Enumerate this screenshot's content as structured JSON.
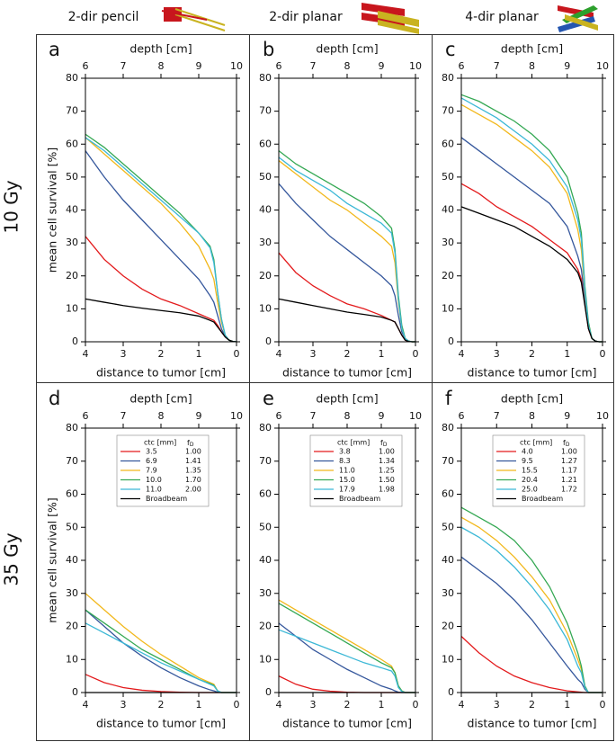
{
  "header": {
    "columns": [
      "2-dir pencil",
      "2-dir planar",
      "4-dir planar"
    ]
  },
  "row_labels": [
    "10 Gy",
    "35 Gy"
  ],
  "chart_data": [
    {
      "type": "line",
      "panel": "a",
      "xlabel": "distance to tumor [cm]",
      "x2label": "depth [cm]",
      "ylabel": "mean cell survival [%]",
      "xlim": [
        4,
        0
      ],
      "xticks": [
        4,
        3,
        2,
        1,
        0
      ],
      "x2lim": [
        6,
        10
      ],
      "x2ticks": [
        6,
        7,
        8,
        9,
        10
      ],
      "ylim": [
        0,
        80
      ],
      "yticks": [
        0,
        10,
        20,
        30,
        40,
        50,
        60,
        70,
        80
      ],
      "x": [
        4,
        3.5,
        3,
        2.5,
        2,
        1.5,
        1,
        0.7,
        0.6,
        0.5,
        0.4,
        0.3,
        0.2,
        0.1,
        0
      ],
      "series": [
        {
          "color": "#e31a1c",
          "values": [
            32,
            25,
            20,
            16,
            13,
            11,
            8.5,
            7,
            6.5,
            5,
            3,
            1.5,
            0.5,
            0.1,
            0
          ]
        },
        {
          "color": "#35579c",
          "values": [
            58,
            50,
            43,
            37,
            31,
            25,
            19,
            14,
            12,
            8,
            4,
            1.5,
            0.5,
            0.1,
            0
          ]
        },
        {
          "color": "#f2b81c",
          "values": [
            62,
            57,
            52,
            47,
            42,
            36,
            29,
            22,
            19,
            12,
            6,
            2,
            0.5,
            0.1,
            0
          ]
        },
        {
          "color": "#34a853",
          "values": [
            63,
            59,
            54,
            49,
            44,
            39,
            33,
            29,
            25,
            15,
            7,
            2,
            0.5,
            0.1,
            0
          ]
        },
        {
          "color": "#3cb8d6",
          "values": [
            62,
            58,
            53,
            48,
            43,
            38,
            33,
            28.5,
            24,
            15,
            7,
            2,
            0.5,
            0.1,
            0
          ]
        },
        {
          "color": "#000000",
          "values": [
            13,
            12,
            11,
            10.2,
            9.5,
            8.8,
            7.8,
            6.5,
            6,
            4.5,
            3,
            1.5,
            0.5,
            0.1,
            0
          ]
        }
      ]
    },
    {
      "type": "line",
      "panel": "b",
      "xlabel": "distance to tumor [cm]",
      "x2label": "depth [cm]",
      "xlim": [
        4,
        0
      ],
      "xticks": [
        4,
        3,
        2,
        1,
        0
      ],
      "x2lim": [
        6,
        10
      ],
      "x2ticks": [
        6,
        7,
        8,
        9,
        10
      ],
      "ylim": [
        0,
        80
      ],
      "yticks": [
        0,
        10,
        20,
        30,
        40,
        50,
        60,
        70,
        80
      ],
      "x": [
        4,
        3.5,
        3,
        2.5,
        2,
        1.5,
        1,
        0.7,
        0.6,
        0.5,
        0.4,
        0.3,
        0.2,
        0.1,
        0
      ],
      "series": [
        {
          "color": "#e31a1c",
          "values": [
            27,
            21,
            17,
            14,
            11.5,
            10,
            8,
            6.5,
            6,
            4,
            2,
            0.5,
            0.1,
            0,
            0
          ]
        },
        {
          "color": "#35579c",
          "values": [
            48,
            42,
            37,
            32,
            28,
            24,
            20,
            17,
            14,
            8,
            3,
            1,
            0.2,
            0,
            0
          ]
        },
        {
          "color": "#f2b81c",
          "values": [
            55,
            51,
            47,
            43,
            40,
            36,
            32,
            29,
            24,
            12,
            4,
            1,
            0.2,
            0,
            0
          ]
        },
        {
          "color": "#34a853",
          "values": [
            58,
            54,
            51,
            48,
            45,
            42,
            38,
            34.5,
            28,
            14,
            5,
            1,
            0.2,
            0,
            0
          ]
        },
        {
          "color": "#3cb8d6",
          "values": [
            56,
            52,
            49,
            46,
            42,
            39,
            36,
            33,
            27,
            13,
            4,
            1,
            0.2,
            0,
            0
          ]
        },
        {
          "color": "#000000",
          "values": [
            13,
            12,
            11,
            10,
            9,
            8.3,
            7.5,
            6.5,
            6,
            4,
            2,
            0.5,
            0.1,
            0,
            0
          ]
        }
      ]
    },
    {
      "type": "line",
      "panel": "c",
      "xlabel": "distance to tumor [cm]",
      "x2label": "depth [cm]",
      "xlim": [
        4,
        0
      ],
      "xticks": [
        4,
        3,
        2,
        1,
        0
      ],
      "x2lim": [
        6,
        10
      ],
      "x2ticks": [
        6,
        7,
        8,
        9,
        10
      ],
      "ylim": [
        0,
        80
      ],
      "yticks": [
        0,
        10,
        20,
        30,
        40,
        50,
        60,
        70,
        80
      ],
      "x": [
        4,
        3.5,
        3,
        2.5,
        2,
        1.5,
        1,
        0.7,
        0.6,
        0.5,
        0.4,
        0.3,
        0.2,
        0.1,
        0
      ],
      "series": [
        {
          "color": "#e31a1c",
          "values": [
            48,
            45,
            41,
            38,
            35,
            31,
            27,
            22,
            19,
            12,
            4,
            1,
            0.2,
            0,
            0
          ]
        },
        {
          "color": "#35579c",
          "values": [
            62,
            58,
            54,
            50,
            46,
            42,
            35,
            26,
            22,
            13,
            5,
            1,
            0.2,
            0,
            0
          ]
        },
        {
          "color": "#f2b81c",
          "values": [
            72,
            69,
            66,
            62,
            58,
            53,
            45,
            34,
            28,
            15,
            5,
            1,
            0.2,
            0,
            0
          ]
        },
        {
          "color": "#34a853",
          "values": [
            75,
            73,
            70,
            67,
            63,
            58,
            50,
            39,
            33,
            17,
            6,
            1,
            0.2,
            0,
            0
          ]
        },
        {
          "color": "#3cb8d6",
          "values": [
            74,
            71,
            68,
            64,
            60,
            55,
            47,
            37,
            31,
            16,
            5,
            1,
            0.2,
            0,
            0
          ]
        },
        {
          "color": "#000000",
          "values": [
            41,
            39,
            37,
            35,
            32,
            29,
            25,
            21,
            18,
            11,
            4,
            1,
            0.2,
            0,
            0
          ]
        }
      ]
    },
    {
      "type": "line",
      "panel": "d",
      "xlabel": "distance to tumor [cm]",
      "x2label": "depth [cm]",
      "ylabel": "mean cell survival [%]",
      "legend_header": {
        "ctc": "ctc [mm]",
        "fd": "f",
        "fd_sub": "D"
      },
      "xlim": [
        4,
        0
      ],
      "xticks": [
        4,
        3,
        2,
        1,
        0
      ],
      "x2lim": [
        6,
        10
      ],
      "x2ticks": [
        6,
        7,
        8,
        9,
        10
      ],
      "ylim": [
        0,
        80
      ],
      "yticks": [
        0,
        10,
        20,
        30,
        40,
        50,
        60,
        70,
        80
      ],
      "x": [
        4,
        3.5,
        3,
        2.5,
        2,
        1.5,
        1,
        0.7,
        0.6,
        0.5,
        0.4,
        0.3,
        0.2,
        0.1,
        0
      ],
      "series": [
        {
          "name": "3.5",
          "fd": "1.00",
          "color": "#e31a1c",
          "values": [
            5.5,
            3,
            1.5,
            0.7,
            0.3,
            0.1,
            0,
            0,
            0,
            0,
            0,
            0,
            0,
            0,
            0
          ]
        },
        {
          "name": "6.9",
          "fd": "1.41",
          "color": "#35579c",
          "values": [
            25,
            20,
            15,
            11,
            7.5,
            4.5,
            2,
            0.8,
            0.5,
            0.1,
            0,
            0,
            0,
            0,
            0
          ]
        },
        {
          "name": "7.9",
          "fd": "1.35",
          "color": "#f2b81c",
          "values": [
            30,
            25,
            20,
            15.5,
            11.5,
            8,
            4.5,
            3,
            2.5,
            0.5,
            0,
            0,
            0,
            0,
            0
          ]
        },
        {
          "name": "10.0",
          "fd": "1.70",
          "color": "#34a853",
          "values": [
            25,
            21,
            17,
            13,
            10,
            7,
            4,
            2.7,
            2.2,
            0.5,
            0,
            0,
            0,
            0,
            0
          ]
        },
        {
          "name": "11.0",
          "fd": "2.00",
          "color": "#3cb8d6",
          "values": [
            21,
            18,
            15,
            12,
            9,
            6.5,
            4,
            2.5,
            2,
            0.5,
            0,
            0,
            0,
            0,
            0
          ]
        },
        {
          "name": "Broadbeam",
          "color": "#000000",
          "values": [
            0,
            0,
            0,
            0,
            0,
            0,
            0,
            0,
            0,
            0,
            0,
            0,
            0,
            0,
            0
          ]
        }
      ]
    },
    {
      "type": "line",
      "panel": "e",
      "xlabel": "distance to tumor [cm]",
      "x2label": "depth [cm]",
      "legend_header": {
        "ctc": "ctc [mm]",
        "fd": "f",
        "fd_sub": "D"
      },
      "xlim": [
        4,
        0
      ],
      "xticks": [
        4,
        3,
        2,
        1,
        0
      ],
      "x2lim": [
        6,
        10
      ],
      "x2ticks": [
        6,
        7,
        8,
        9,
        10
      ],
      "ylim": [
        0,
        80
      ],
      "yticks": [
        0,
        10,
        20,
        30,
        40,
        50,
        60,
        70,
        80
      ],
      "x": [
        4,
        3.5,
        3,
        2.5,
        2,
        1.5,
        1,
        0.7,
        0.6,
        0.5,
        0.4,
        0.3,
        0.2,
        0.1,
        0
      ],
      "series": [
        {
          "name": "3.8",
          "fd": "1.00",
          "color": "#e31a1c",
          "values": [
            5,
            2.5,
            1,
            0.4,
            0.1,
            0,
            0,
            0,
            0,
            0,
            0,
            0,
            0,
            0,
            0
          ]
        },
        {
          "name": "8.3",
          "fd": "1.34",
          "color": "#35579c",
          "values": [
            21,
            17,
            13,
            10,
            7,
            4.5,
            2,
            1,
            0.5,
            0.1,
            0,
            0,
            0,
            0,
            0
          ]
        },
        {
          "name": "11.0",
          "fd": "1.25",
          "color": "#f2b81c",
          "values": [
            28,
            25,
            22,
            19,
            16,
            13,
            10,
            8,
            6,
            2,
            0.5,
            0,
            0,
            0,
            0
          ]
        },
        {
          "name": "15.0",
          "fd": "1.50",
          "color": "#34a853",
          "values": [
            27,
            24,
            21,
            18,
            15,
            12,
            9,
            7.5,
            6,
            2,
            0.5,
            0,
            0,
            0,
            0
          ]
        },
        {
          "name": "17.9",
          "fd": "1.98",
          "color": "#3cb8d6",
          "values": [
            19,
            17,
            15,
            13,
            11,
            9,
            7.5,
            6.5,
            5,
            1.5,
            0.3,
            0,
            0,
            0,
            0
          ]
        },
        {
          "name": "Broadbeam",
          "color": "#000000",
          "values": [
            0,
            0,
            0,
            0,
            0,
            0,
            0,
            0,
            0,
            0,
            0,
            0,
            0,
            0,
            0
          ]
        }
      ]
    },
    {
      "type": "line",
      "panel": "f",
      "xlabel": "distance to tumor [cm]",
      "x2label": "depth [cm]",
      "legend_header": {
        "ctc": "ctc [mm]",
        "fd": "f",
        "fd_sub": "D"
      },
      "xlim": [
        4,
        0
      ],
      "xticks": [
        4,
        3,
        2,
        1,
        0
      ],
      "x2lim": [
        6,
        10
      ],
      "x2ticks": [
        6,
        7,
        8,
        9,
        10
      ],
      "ylim": [
        0,
        80
      ],
      "yticks": [
        0,
        10,
        20,
        30,
        40,
        50,
        60,
        70,
        80
      ],
      "x": [
        4,
        3.5,
        3,
        2.5,
        2,
        1.5,
        1,
        0.7,
        0.6,
        0.5,
        0.4,
        0.3,
        0.2,
        0.1,
        0
      ],
      "series": [
        {
          "name": "4.0",
          "fd": "1.00",
          "color": "#e31a1c",
          "values": [
            17,
            12,
            8,
            5,
            3,
            1.5,
            0.5,
            0.2,
            0.1,
            0,
            0,
            0,
            0,
            0,
            0
          ]
        },
        {
          "name": "9.5",
          "fd": "1.27",
          "color": "#35579c",
          "values": [
            41,
            37,
            33,
            28,
            22,
            15,
            8,
            4,
            3,
            1,
            0,
            0,
            0,
            0,
            0
          ]
        },
        {
          "name": "15.5",
          "fd": "1.17",
          "color": "#f2b81c",
          "values": [
            53,
            50,
            46,
            41,
            35,
            28,
            18,
            10,
            7,
            1.5,
            0,
            0,
            0,
            0,
            0
          ]
        },
        {
          "name": "20.4",
          "fd": "1.21",
          "color": "#34a853",
          "values": [
            56,
            53,
            50,
            46,
            40,
            32,
            21,
            12,
            8,
            2,
            0,
            0,
            0,
            0,
            0
          ]
        },
        {
          "name": "25.0",
          "fd": "1.72",
          "color": "#3cb8d6",
          "values": [
            50,
            47,
            43,
            38,
            32,
            25,
            16,
            8,
            6,
            1.5,
            0,
            0,
            0,
            0,
            0
          ]
        },
        {
          "name": "Broadbeam",
          "color": "#000000",
          "values": [
            0,
            0,
            0,
            0,
            0,
            0,
            0,
            0,
            0,
            0,
            0,
            0,
            0,
            0,
            0
          ]
        }
      ]
    }
  ]
}
